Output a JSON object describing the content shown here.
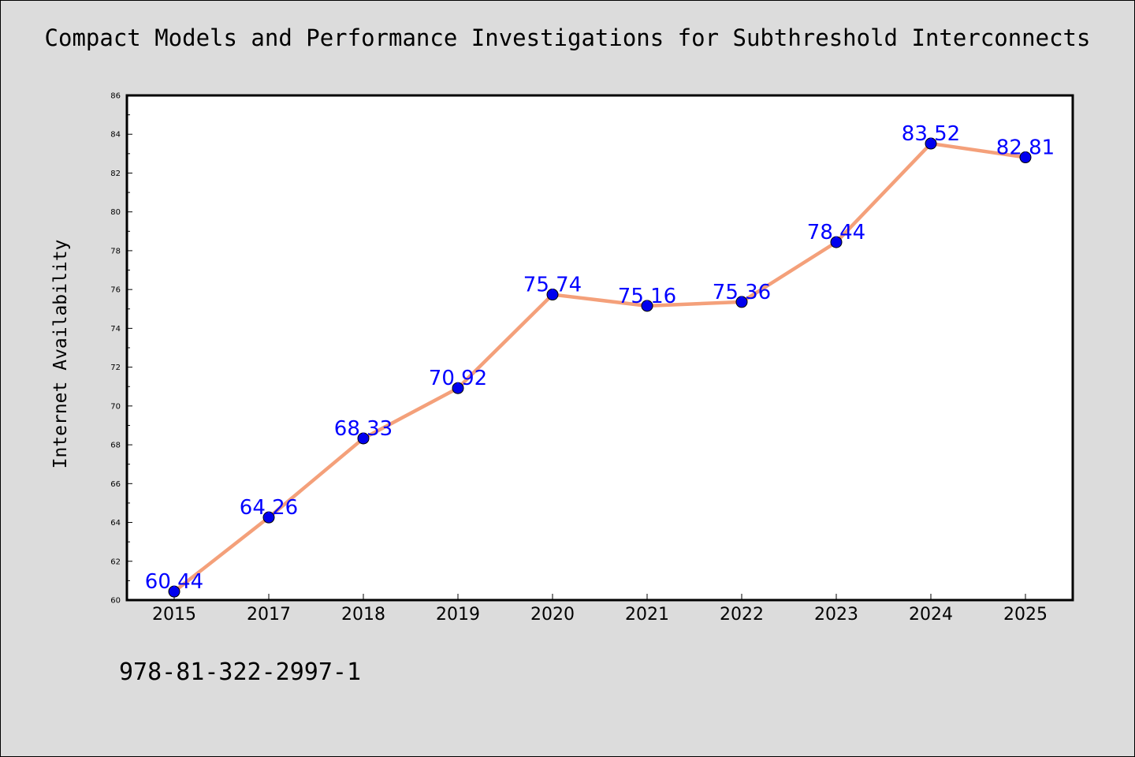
{
  "chart_data": {
    "type": "line",
    "title": "Compact Models and Performance Investigations for Subthreshold Interconnects",
    "xlabel": "",
    "ylabel": "Internet Availability",
    "categories": [
      "2015",
      "2017",
      "2018",
      "2019",
      "2020",
      "2021",
      "2022",
      "2023",
      "2024",
      "2025"
    ],
    "values": [
      60.44,
      64.26,
      68.33,
      70.92,
      75.74,
      75.16,
      75.36,
      78.44,
      83.52,
      82.81
    ],
    "data_labels": [
      "60.44",
      "64.26",
      "68.33",
      "70.92",
      "75.74",
      "75.16",
      "75.36",
      "78.44",
      "83.52",
      "82.81"
    ],
    "ylim": [
      60,
      86
    ],
    "yticks": [
      60,
      62,
      64,
      66,
      68,
      70,
      72,
      74,
      76,
      78,
      80,
      82,
      84,
      86
    ],
    "grid": false,
    "line_color": "#f4a07a",
    "marker_color": "#0000ee",
    "label_color": "#0000ff",
    "plot_background": "#ffffff",
    "figure_background": "#dcdcdc"
  },
  "annotation": "978-81-322-2997-1"
}
